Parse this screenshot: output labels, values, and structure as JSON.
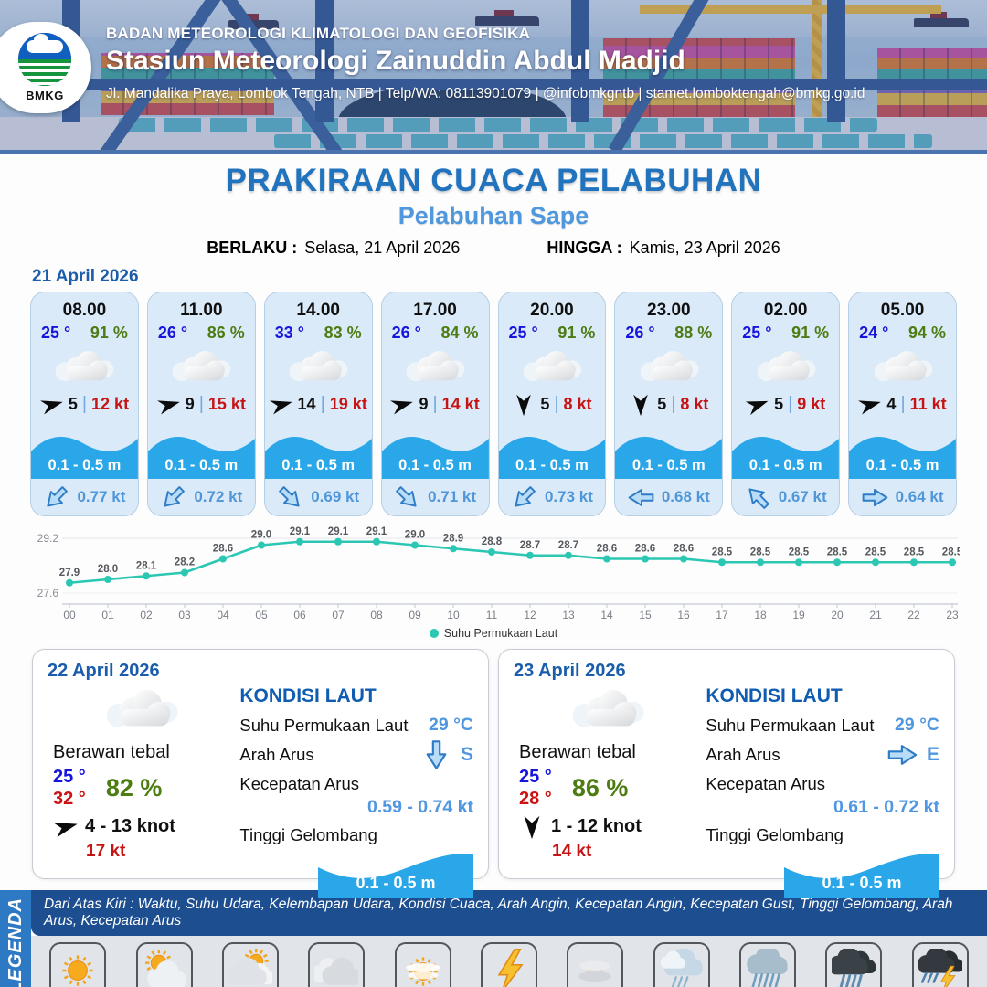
{
  "header": {
    "logo_text": "BMKG",
    "org": "BADAN METEOROLOGI KLIMATOLOGI DAN GEOFISIKA",
    "station": "Stasiun Meteorologi Zainuddin Abdul Madjid",
    "address": "Jl. Mandalika Praya, Lombok Tengah, NTB | Telp/WA: 08113901079 | @infobmkgntb | stamet.lomboktengah@bmkg.go.id"
  },
  "title": {
    "main": "PRAKIRAAN CUACA PELABUHAN",
    "subtitle": "Pelabuhan Sape",
    "berlaku_label": "BERLAKU :",
    "berlaku_value": "Selasa, 21 April 2026",
    "hingga_label": "HINGGA :",
    "hingga_value": "Kamis, 23 April 2026"
  },
  "day1": {
    "date": "21 April 2026",
    "cards": [
      {
        "time": "08.00",
        "temp": "25 °",
        "hum": "91 %",
        "wind": "5",
        "wind_deg": -15,
        "gust": "12 kt",
        "wave": "0.1 - 0.5 m",
        "current": "0.77 kt",
        "current_deg": 135
      },
      {
        "time": "11.00",
        "temp": "26 °",
        "hum": "86 %",
        "wind": "9",
        "wind_deg": -15,
        "gust": "15 kt",
        "wave": "0.1 - 0.5 m",
        "current": "0.72 kt",
        "current_deg": 135
      },
      {
        "time": "14.00",
        "temp": "33 °",
        "hum": "83 %",
        "wind": "14",
        "wind_deg": -15,
        "gust": "19 kt",
        "wave": "0.1 - 0.5 m",
        "current": "0.69 kt",
        "current_deg": 45
      },
      {
        "time": "17.00",
        "temp": "26 °",
        "hum": "84 %",
        "wind": "9",
        "wind_deg": -15,
        "gust": "14 kt",
        "wave": "0.1 - 0.5 m",
        "current": "0.71 kt",
        "current_deg": 45
      },
      {
        "time": "20.00",
        "temp": "25 °",
        "hum": "91 %",
        "wind": "5",
        "wind_deg": 90,
        "gust": "8 kt",
        "wave": "0.1 - 0.5 m",
        "current": "0.73 kt",
        "current_deg": 135
      },
      {
        "time": "23.00",
        "temp": "26 °",
        "hum": "88 %",
        "wind": "5",
        "wind_deg": 90,
        "gust": "8 kt",
        "wave": "0.1 - 0.5 m",
        "current": "0.68 kt",
        "current_deg": 180
      },
      {
        "time": "02.00",
        "temp": "25 °",
        "hum": "91 %",
        "wind": "5",
        "wind_deg": -20,
        "gust": "9 kt",
        "wave": "0.1 - 0.5 m",
        "current": "0.67 kt",
        "current_deg": 225
      },
      {
        "time": "05.00",
        "temp": "24 °",
        "hum": "94 %",
        "wind": "4",
        "wind_deg": -15,
        "gust": "11 kt",
        "wave": "0.1 - 0.5 m",
        "current": "0.64 kt",
        "current_deg": 0
      }
    ]
  },
  "chart_data": {
    "type": "line",
    "title": "",
    "x": [
      "00",
      "01",
      "02",
      "03",
      "04",
      "05",
      "06",
      "07",
      "08",
      "09",
      "10",
      "11",
      "12",
      "13",
      "14",
      "15",
      "16",
      "17",
      "18",
      "19",
      "20",
      "21",
      "22",
      "23"
    ],
    "series": [
      {
        "name": "Suhu Permukaan Laut",
        "values": [
          27.9,
          28.0,
          28.1,
          28.2,
          28.6,
          29.0,
          29.1,
          29.1,
          29.1,
          29.0,
          28.9,
          28.8,
          28.7,
          28.7,
          28.6,
          28.6,
          28.6,
          28.5,
          28.5,
          28.5,
          28.5,
          28.5,
          28.5,
          28.5
        ]
      }
    ],
    "ylim": [
      27.6,
      29.2
    ],
    "yticks": [
      27.6,
      29.2
    ],
    "line_color": "#2cc7b2",
    "grid": true,
    "legend_position": "bottom"
  },
  "panels": [
    {
      "date": "22 April 2026",
      "condition": "Berawan tebal",
      "temp_low": "25 °",
      "temp_high": "32 °",
      "humidity": "82 %",
      "wind": "4  - 13 knot",
      "wind_deg": -15,
      "gust": "17 kt",
      "sea": {
        "title": "KONDISI LAUT",
        "sst_label": "Suhu Permukaan Laut",
        "sst_value": "29 °C",
        "dir_label": "Arah Arus",
        "dir_value": "S",
        "dir_deg": 90,
        "speed_label": "Kecepatan Arus",
        "speed_value": "0.59 - 0.74 kt",
        "wave_label": "Tinggi Gelombang",
        "wave_value": "0.1 - 0.5 m"
      }
    },
    {
      "date": "23 April 2026",
      "condition": "Berawan tebal",
      "temp_low": "25 °",
      "temp_high": "28 °",
      "humidity": "86 %",
      "wind": "1  - 12 knot",
      "wind_deg": 90,
      "gust": "14 kt",
      "sea": {
        "title": "KONDISI LAUT",
        "sst_label": "Suhu Permukaan Laut",
        "sst_value": "29 °C",
        "dir_label": "Arah Arus",
        "dir_value": "E",
        "dir_deg": 0,
        "speed_label": "Kecepatan Arus",
        "speed_value": "0.61 - 0.72 kt",
        "wave_label": "Tinggi Gelombang",
        "wave_value": "0.1 - 0.5 m"
      }
    }
  ],
  "legend": {
    "title": "LEGENDA",
    "description": "Dari Atas Kiri : Waktu, Suhu Udara, Kelembapan Udara, Kondisi Cuaca, Arah Angin, Kecepatan Angin, Kecepatan Gust, Tinggi Gelombang, Arah Arus, Kecepatan Arus",
    "items": [
      {
        "label": "Cerah",
        "icon": "cerah"
      },
      {
        "label": "Cerah Berawan",
        "icon": "cerah-berawan"
      },
      {
        "label": "Berawan",
        "icon": "berawan"
      },
      {
        "label": "Berawan Tebal",
        "icon": "berawan-tebal"
      },
      {
        "label": "Udara Kabur",
        "icon": "udara-kabur"
      },
      {
        "label": "Petir",
        "icon": "petir"
      },
      {
        "label": "Kabut",
        "icon": "kabut"
      },
      {
        "label": "Hujan Ringan",
        "icon": "hujan-ringan"
      },
      {
        "label": "Hujan Sedang",
        "icon": "hujan-sedang"
      },
      {
        "label": "Hujan Lebat",
        "icon": "hujan-lebat"
      },
      {
        "label": "Hujan Petir",
        "icon": "hujan-petir"
      }
    ]
  }
}
